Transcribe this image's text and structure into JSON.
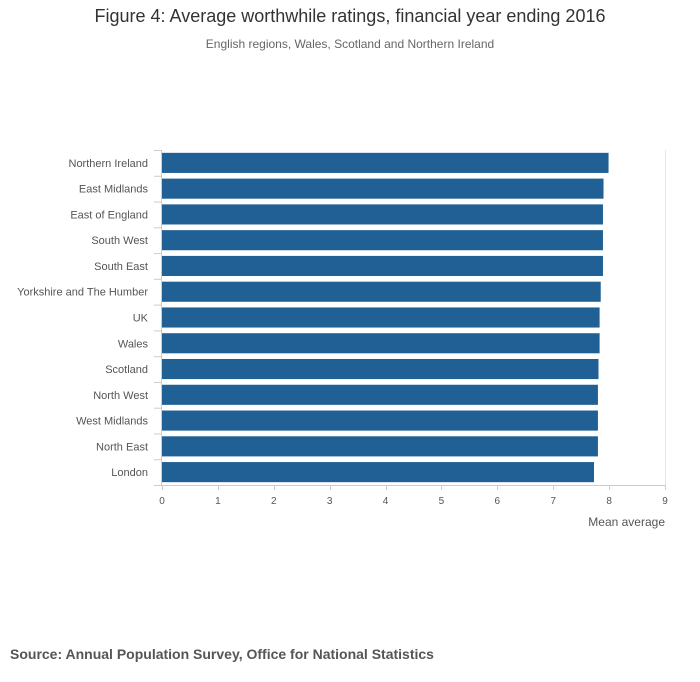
{
  "header": {
    "title": "Figure 4: Average worthwhile ratings, financial year ending 2016",
    "subtitle": "English regions, Wales, Scotland and Northern Ireland"
  },
  "footer": {
    "source": "Source: Annual Population Survey, Office for National Statistics"
  },
  "chart_data": {
    "type": "bar",
    "orientation": "horizontal",
    "categories": [
      "Northern Ireland",
      "East Midlands",
      "East of England",
      "South West",
      "South East",
      "Yorkshire and The Humber",
      "UK",
      "Wales",
      "Scotland",
      "North West",
      "West Midlands",
      "North East",
      "London"
    ],
    "values": [
      7.99,
      7.9,
      7.89,
      7.89,
      7.89,
      7.85,
      7.83,
      7.83,
      7.81,
      7.8,
      7.8,
      7.8,
      7.73
    ],
    "xlabel": "Mean average",
    "ylabel": "",
    "xlim": [
      0,
      9
    ],
    "xticks": [
      0,
      1,
      2,
      3,
      4,
      5,
      6,
      7,
      8,
      9
    ],
    "grid": false,
    "bar_color": "#206095",
    "axis_color": "#cccccc"
  }
}
